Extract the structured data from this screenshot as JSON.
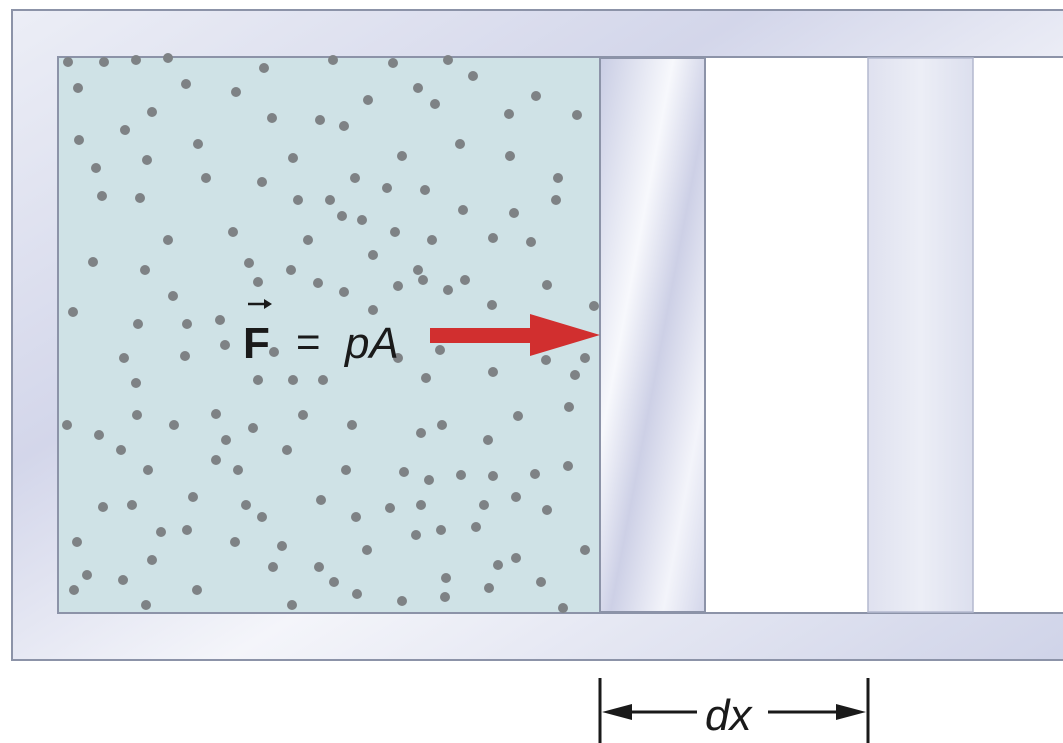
{
  "labels": {
    "force_symbol": "F",
    "force_equals": "=",
    "force_rhs": "pA",
    "displacement": "dx"
  },
  "colors": {
    "gas": "#cfe2e6",
    "molecule": "#7e8285",
    "arrow": "#d12f2f",
    "cylinder_wall": "#d9dced",
    "piston": "#dcdeed",
    "outline": "#8c93a8"
  }
}
